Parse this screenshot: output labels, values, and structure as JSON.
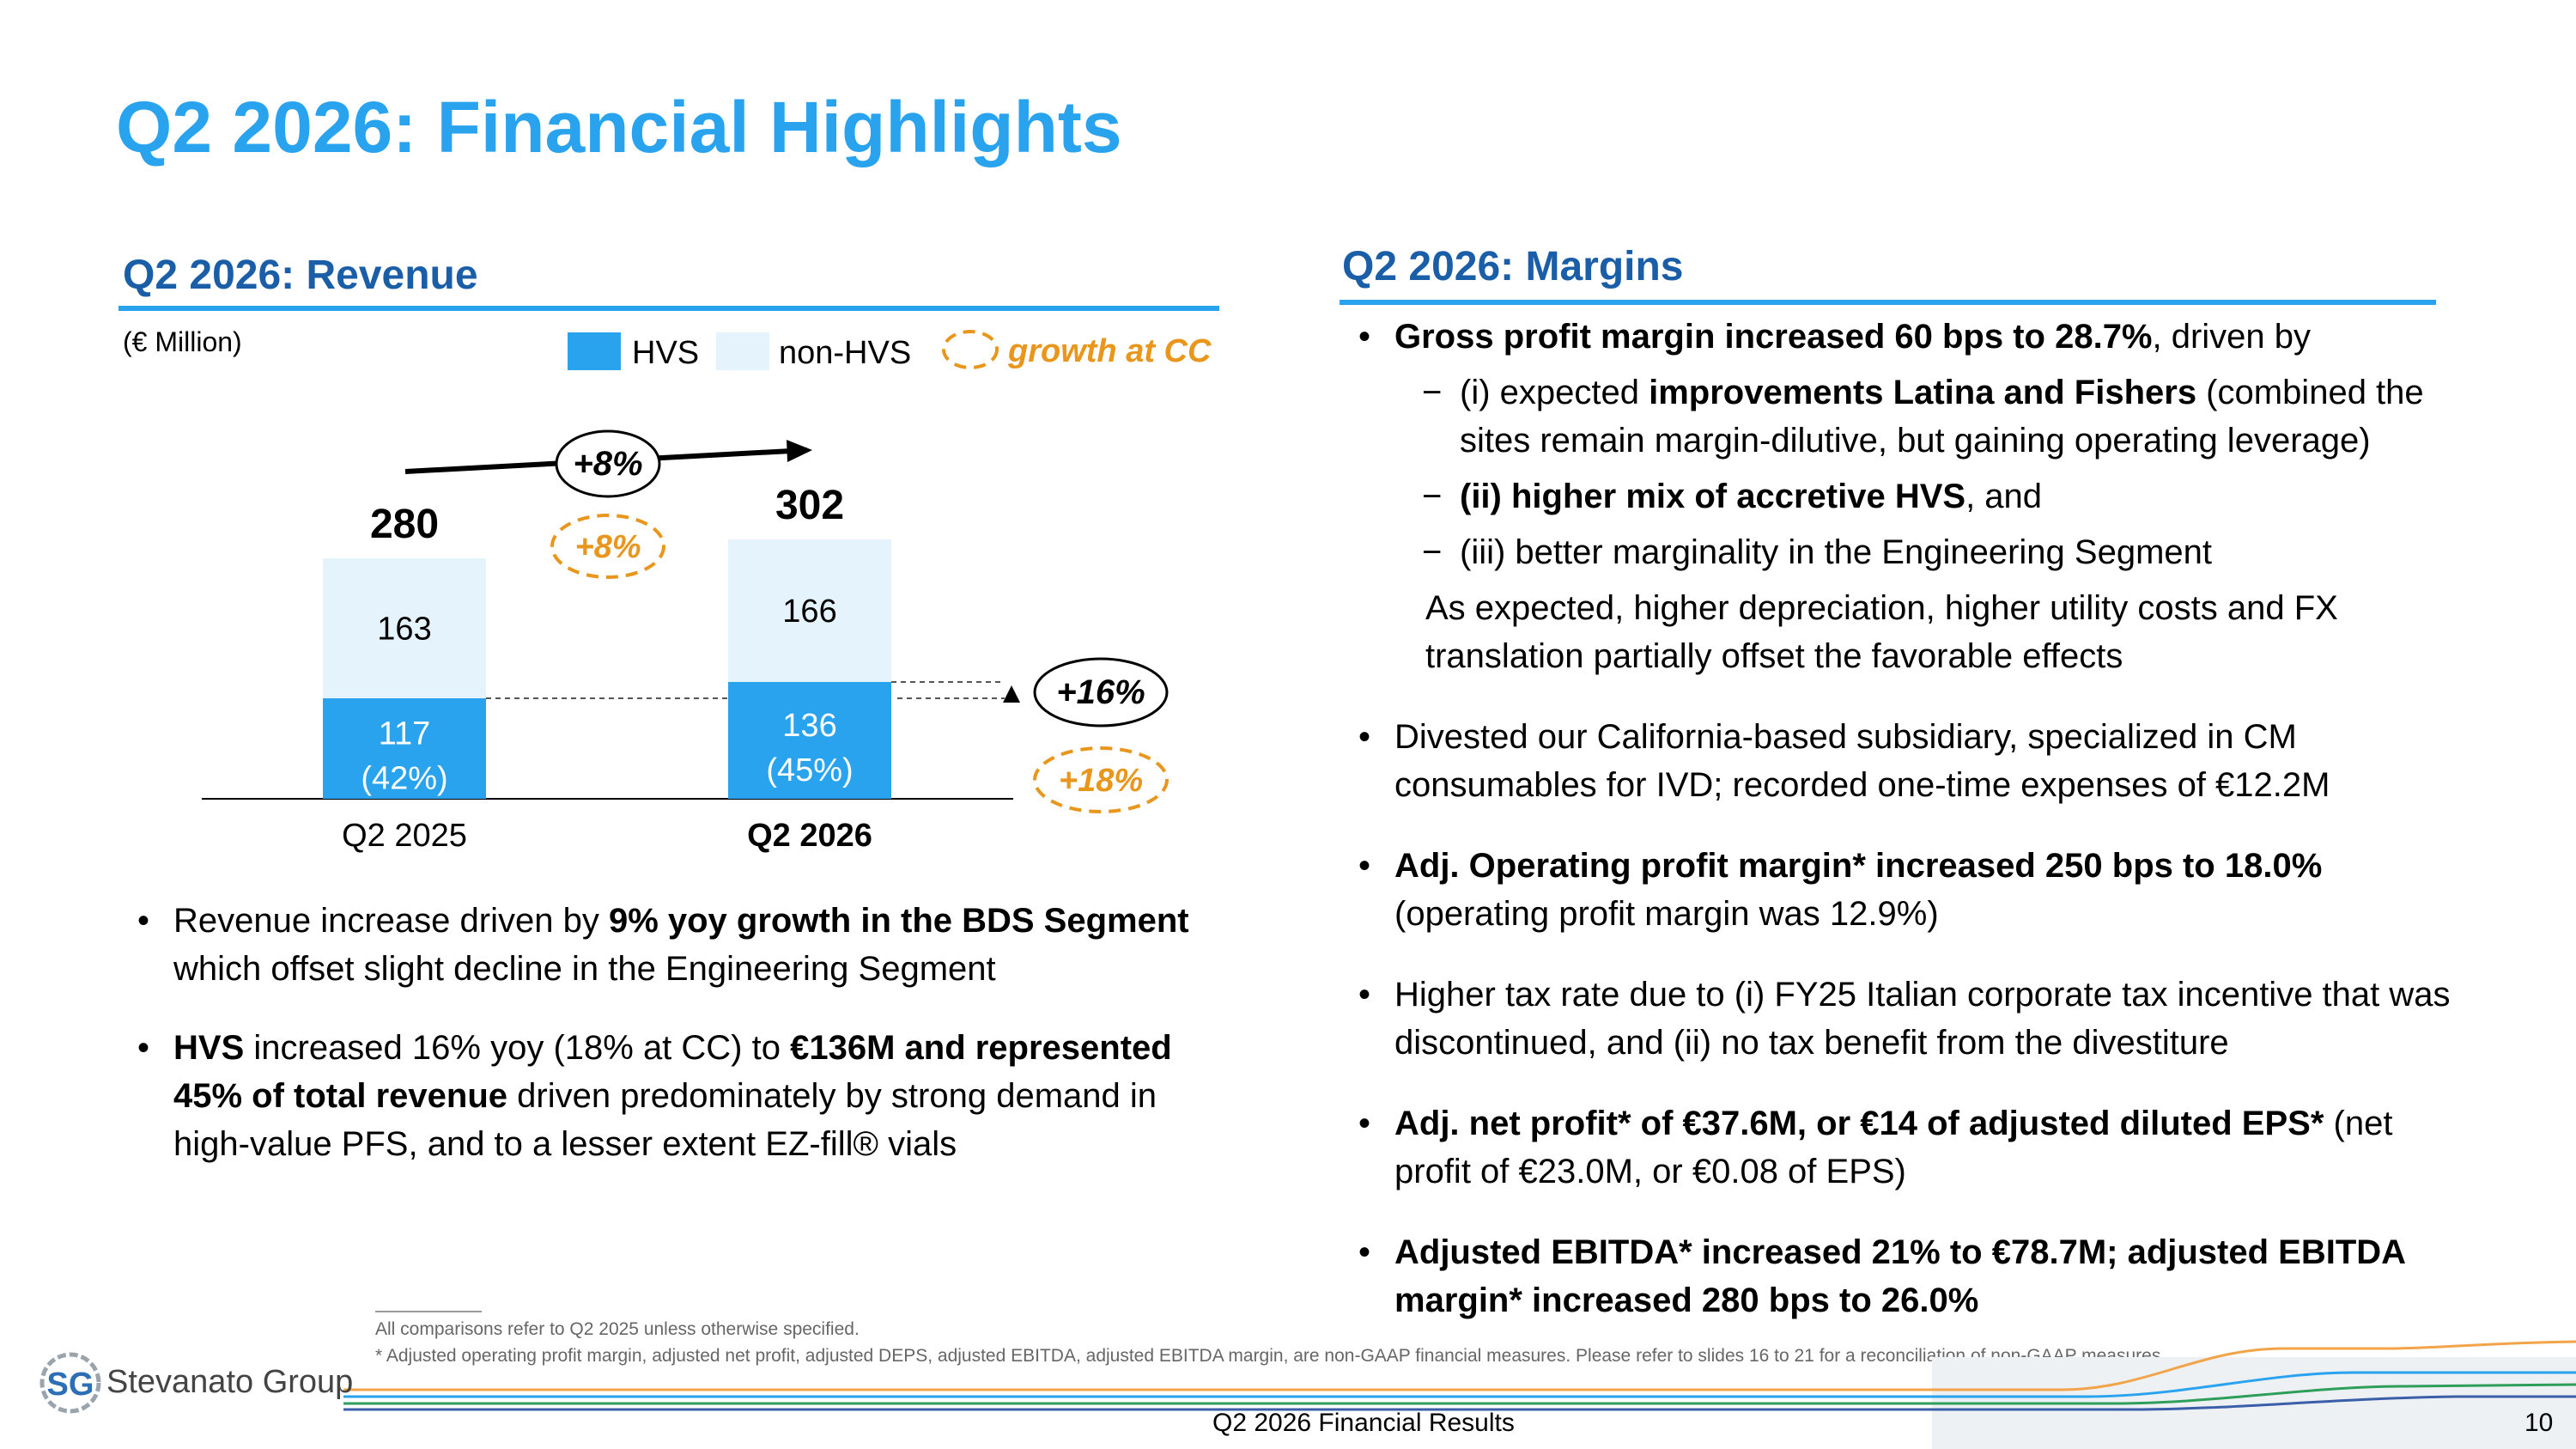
{
  "slide": {
    "title": "Q2 2026: Financial Highlights",
    "page_number": "10",
    "footer": "Q2 2026 Financial Results"
  },
  "revenue": {
    "title": "Q2 2026: Revenue",
    "unit": "(€ Million)",
    "legend": {
      "hvs": "HVS",
      "non_hvs": "non-HVS",
      "cc": "growth at CC"
    },
    "growth_total": "+8%",
    "growth_total_cc": "+8%",
    "growth_hvs": "+16%",
    "growth_hvs_cc": "+18%",
    "bullets": [
      [
        {
          "t": "Revenue increase driven by ",
          "b": false
        },
        {
          "t": "9% yoy growth in the BDS Segment",
          "b": true
        },
        {
          "t": " which offset slight decline in the Engineering Segment",
          "b": false
        }
      ],
      [
        {
          "t": "HVS",
          "b": true
        },
        {
          "t": " increased 16% yoy (18% at CC) to ",
          "b": false
        },
        {
          "t": "€136M and represented 45% of total revenue",
          "b": true
        },
        {
          "t": " driven predominately by strong demand in high-value PFS, and to a lesser extent EZ-fill® vials",
          "b": false
        }
      ]
    ]
  },
  "chart_data": {
    "type": "bar",
    "stacked": true,
    "categories": [
      "Q2 2025",
      "Q2 2026"
    ],
    "series": [
      {
        "name": "HVS",
        "values": [
          117,
          136
        ],
        "labels": [
          "117",
          "136"
        ],
        "share_labels": [
          "(42%)",
          "(45%)"
        ],
        "color": "#2aa3ef"
      },
      {
        "name": "non-HVS",
        "values": [
          163,
          166
        ],
        "labels": [
          "163",
          "166"
        ],
        "color": "#e5f3fc"
      }
    ],
    "totals": [
      280,
      302
    ],
    "total_labels": [
      "280",
      "302"
    ],
    "bold_category": "Q2 2026",
    "ylim": [
      0,
      320
    ]
  },
  "margins": {
    "title": "Q2 2026: Margins",
    "items": [
      {
        "kind": "bullet",
        "runs": [
          {
            "t": "Gross profit margin increased 60 bps to 28.7%",
            "b": true
          },
          {
            "t": ", driven by",
            "b": false
          }
        ]
      },
      {
        "kind": "dash",
        "runs": [
          {
            "t": "(i) expected ",
            "b": false
          },
          {
            "t": "improvements Latina and Fishers",
            "b": true
          },
          {
            "t": " (combined the sites remain margin-dilutive, but gaining operating leverage)",
            "b": false
          }
        ]
      },
      {
        "kind": "dash",
        "runs": [
          {
            "t": "(ii) higher mix of accretive HVS",
            "b": true
          },
          {
            "t": ", and",
            "b": false
          }
        ]
      },
      {
        "kind": "dash",
        "runs": [
          {
            "t": "(iii) better marginality in the Engineering Segment",
            "b": false
          }
        ]
      },
      {
        "kind": "plain",
        "runs": [
          {
            "t": "As expected, higher depreciation, higher utility costs and FX translation partially offset the favorable effects",
            "b": false
          }
        ]
      },
      {
        "kind": "bullet",
        "runs": [
          {
            "t": "Divested our California-based subsidiary, specialized in CM consumables for IVD;  recorded one-time expenses of €12.2M",
            "b": false
          }
        ]
      },
      {
        "kind": "bullet",
        "runs": [
          {
            "t": "Adj. Operating profit margin* increased 250 bps to 18.0%",
            "b": true
          },
          {
            "t": " (operating profit margin was 12.9%)",
            "b": false
          }
        ]
      },
      {
        "kind": "bullet",
        "runs": [
          {
            "t": "Higher tax rate due to (i) FY25 Italian corporate tax incentive that was discontinued, and (ii) no tax benefit from the divestiture",
            "b": false
          }
        ]
      },
      {
        "kind": "bullet",
        "runs": [
          {
            "t": "Adj. net profit* of €37.6M, or €14 of adjusted diluted EPS*",
            "b": true
          },
          {
            "t": " (net profit of €23.0M, or €0.08 of EPS)",
            "b": false
          }
        ]
      },
      {
        "kind": "bullet",
        "runs": [
          {
            "t": "Adjusted EBITDA* increased 21% to €78.7M; adjusted EBITDA margin* increased 280 bps to 26.0%",
            "b": true
          }
        ]
      }
    ]
  },
  "footnotes": {
    "line1": "All comparisons refer to Q2 2025 unless otherwise specified.",
    "line2": "* Adjusted operating profit margin, adjusted net profit, adjusted DEPS, adjusted EBITDA, adjusted EBITDA margin, are non-GAAP financial measures. Please refer to slides 16 to 21 for a reconciliation of non-GAAP measures"
  },
  "logo": {
    "mark": "SG",
    "name": "Stevanato Group"
  },
  "colors": {
    "accent": "#2aa3ef",
    "section_title": "#1a5ea8",
    "cc_orange": "#e9961d",
    "non_hvs": "#e5f3fc"
  }
}
